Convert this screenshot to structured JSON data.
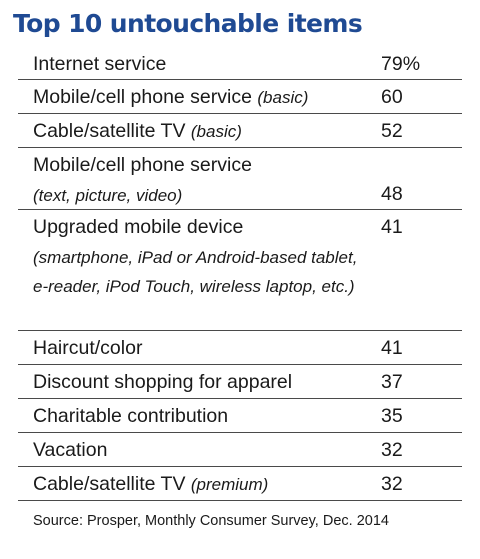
{
  "title": "Top 10 untouchable items",
  "items": [
    {
      "label": "Internet service",
      "qualifier": "",
      "detail": "",
      "value": "79%"
    },
    {
      "label": "Mobile/cell phone service",
      "qualifier": "(basic)",
      "detail": "",
      "value": "60"
    },
    {
      "label": "Cable/satellite TV",
      "qualifier": "(basic)",
      "detail": "",
      "value": "52"
    },
    {
      "label": "Mobile/cell phone service",
      "qualifier": "",
      "detail": "(text, picture, video)",
      "value": "48"
    },
    {
      "label": "Upgraded mobile device",
      "qualifier": "",
      "detail": "(smartphone, iPad or Android-based tablet, e-reader, iPod Touch, wireless laptop, etc.)",
      "value": "41"
    },
    {
      "label": "Haircut/color",
      "qualifier": "",
      "detail": "",
      "value": "41"
    },
    {
      "label": "Discount shopping for apparel",
      "qualifier": "",
      "detail": "",
      "value": "37"
    },
    {
      "label": "Charitable contribution",
      "qualifier": "",
      "detail": "",
      "value": "35"
    },
    {
      "label": "Vacation",
      "qualifier": "",
      "detail": "",
      "value": "32"
    },
    {
      "label": "Cable/satellite TV",
      "qualifier": "(premium)",
      "detail": "",
      "value": "32"
    }
  ],
  "source": "Source: Prosper, Monthly Consumer Survey, Dec. 2014"
}
